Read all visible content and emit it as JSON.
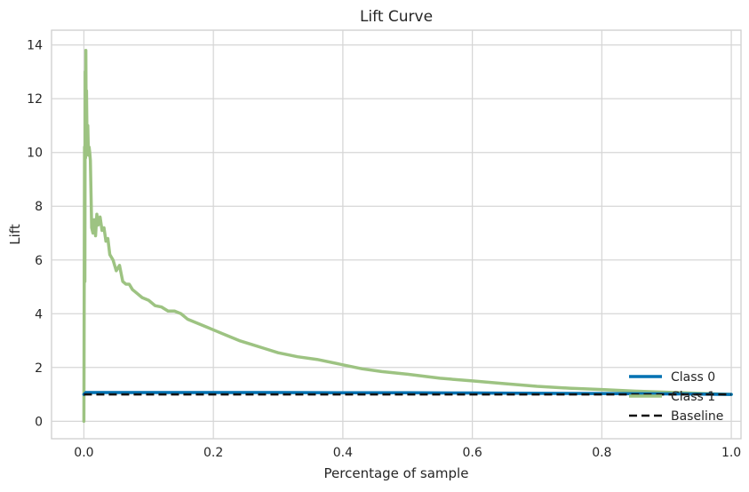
{
  "chart_data": {
    "type": "line",
    "title": "Lift Curve",
    "xlabel": "Percentage of sample",
    "ylabel": "Lift",
    "xlim": [
      -0.05,
      1.015
    ],
    "ylim": [
      -0.65,
      14.55
    ],
    "xticks": [
      0.0,
      0.2,
      0.4,
      0.6,
      0.8,
      1.0
    ],
    "xtick_labels": [
      "0.0",
      "0.2",
      "0.4",
      "0.6",
      "0.8",
      "1.0"
    ],
    "yticks": [
      0,
      2,
      4,
      6,
      8,
      10,
      12,
      14
    ],
    "ytick_labels": [
      "0",
      "2",
      "4",
      "6",
      "8",
      "10",
      "12",
      "14"
    ],
    "grid": true,
    "legend_position": "lower-right",
    "series": [
      {
        "name": "Class 0",
        "color": "#0072B2",
        "style": "solid",
        "x": [
          0.0,
          0.003,
          0.02,
          0.05,
          0.1,
          0.2,
          0.3,
          0.4,
          0.5,
          0.6,
          0.7,
          0.8,
          0.9,
          1.0
        ],
        "y": [
          1.0,
          1.07,
          1.07,
          1.07,
          1.07,
          1.07,
          1.07,
          1.06,
          1.06,
          1.05,
          1.04,
          1.03,
          1.02,
          1.0
        ]
      },
      {
        "name": "Class 1",
        "color": "#9DC382",
        "style": "solid",
        "x": [
          0.0,
          0.001,
          0.0015,
          0.002,
          0.0025,
          0.003,
          0.0035,
          0.004,
          0.005,
          0.006,
          0.007,
          0.008,
          0.009,
          0.01,
          0.012,
          0.014,
          0.016,
          0.018,
          0.02,
          0.022,
          0.025,
          0.028,
          0.031,
          0.034,
          0.037,
          0.04,
          0.045,
          0.05,
          0.055,
          0.06,
          0.065,
          0.07,
          0.075,
          0.08,
          0.09,
          0.1,
          0.11,
          0.12,
          0.13,
          0.14,
          0.15,
          0.16,
          0.17,
          0.18,
          0.19,
          0.2,
          0.22,
          0.24,
          0.26,
          0.28,
          0.3,
          0.33,
          0.36,
          0.4,
          0.43,
          0.46,
          0.5,
          0.55,
          0.6,
          0.65,
          0.7,
          0.75,
          0.8,
          0.85,
          0.9,
          0.95,
          1.0
        ],
        "y": [
          0.0,
          10.2,
          5.2,
          13.0,
          9.8,
          13.8,
          10.5,
          12.3,
          10.0,
          11.0,
          9.9,
          10.2,
          10.0,
          9.7,
          7.2,
          7.0,
          7.5,
          6.9,
          7.7,
          7.3,
          7.6,
          7.1,
          7.2,
          6.7,
          6.8,
          6.2,
          6.0,
          5.6,
          5.8,
          5.2,
          5.1,
          5.1,
          4.9,
          4.8,
          4.6,
          4.5,
          4.3,
          4.25,
          4.1,
          4.1,
          4.0,
          3.8,
          3.7,
          3.6,
          3.5,
          3.4,
          3.2,
          3.0,
          2.85,
          2.7,
          2.55,
          2.4,
          2.3,
          2.1,
          1.95,
          1.85,
          1.75,
          1.6,
          1.5,
          1.4,
          1.3,
          1.23,
          1.18,
          1.12,
          1.08,
          1.04,
          1.0
        ]
      },
      {
        "name": "Baseline",
        "color": "#111111",
        "style": "dashed",
        "x": [
          0.0,
          1.0
        ],
        "y": [
          1.0,
          1.0
        ]
      }
    ]
  }
}
